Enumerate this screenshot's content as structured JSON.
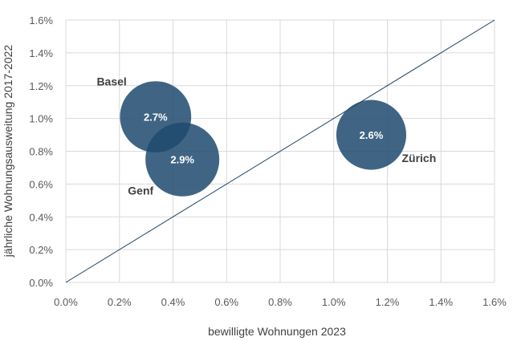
{
  "chart_data": {
    "type": "bubble",
    "xlabel": "bewilligte Wohnungen 2023",
    "ylabel": "jährliche Wohnungsausweitung 2017-2022",
    "xlim": [
      0,
      0.016
    ],
    "ylim": [
      0,
      0.016
    ],
    "xticks": [
      "0.0%",
      "0.2%",
      "0.4%",
      "0.6%",
      "0.8%",
      "1.0%",
      "1.2%",
      "1.4%",
      "1.6%"
    ],
    "yticks": [
      "0.0%",
      "0.2%",
      "0.4%",
      "0.6%",
      "0.8%",
      "1.0%",
      "1.2%",
      "1.4%",
      "1.6%"
    ],
    "grid": true,
    "reference_line": {
      "from": [
        0,
        0
      ],
      "to": [
        0.016,
        0.016
      ]
    },
    "points": [
      {
        "name": "Basel",
        "x": 0.00335,
        "y": 0.0101,
        "size_label": "2.7%",
        "size": 2.7
      },
      {
        "name": "Genf",
        "x": 0.00435,
        "y": 0.0075,
        "size_label": "2.9%",
        "size": 2.9
      },
      {
        "name": "Zürich",
        "x": 0.0114,
        "y": 0.009,
        "size_label": "2.6%",
        "size": 2.6
      }
    ],
    "colors": {
      "bubble": "#1f4a6e",
      "line": "#1f3f66",
      "grid": "#d9d9d9"
    }
  }
}
